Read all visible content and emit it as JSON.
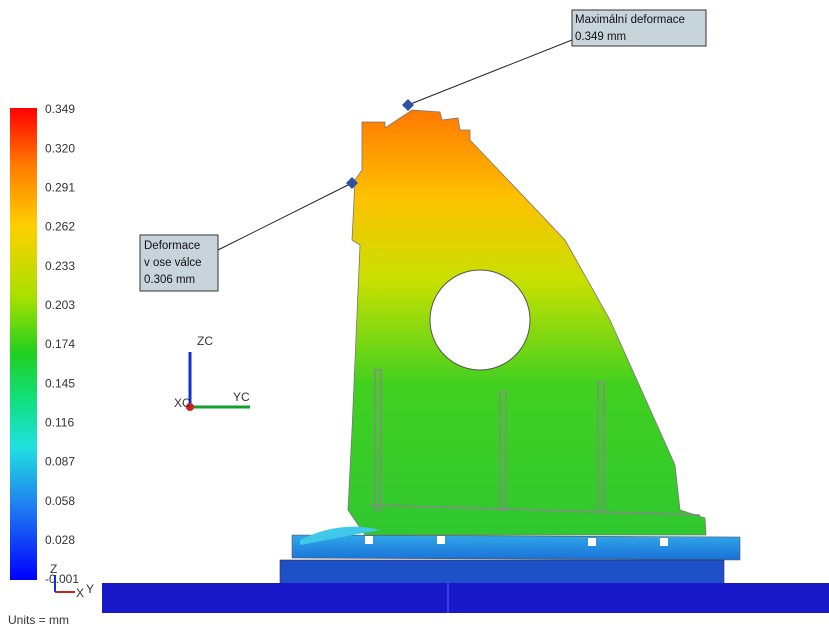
{
  "legend": {
    "labels": [
      "0.349",
      "0.320",
      "0.291",
      "0.262",
      "0.233",
      "0.203",
      "0.174",
      "0.145",
      "0.116",
      "0.087",
      "0.058",
      "0.028",
      "-0.001"
    ]
  },
  "callouts": [
    {
      "lines": [
        "Maximální deformace",
        "0.349 mm"
      ]
    },
    {
      "lines": [
        "Deformace",
        "v ose válce",
        "0.306 mm"
      ]
    }
  ],
  "triad": {
    "z": "ZC",
    "y": "YC",
    "x": "XC"
  },
  "mini_triad": {
    "z": "Z",
    "y": "Y",
    "x": "X"
  },
  "units": "Units = mm"
}
